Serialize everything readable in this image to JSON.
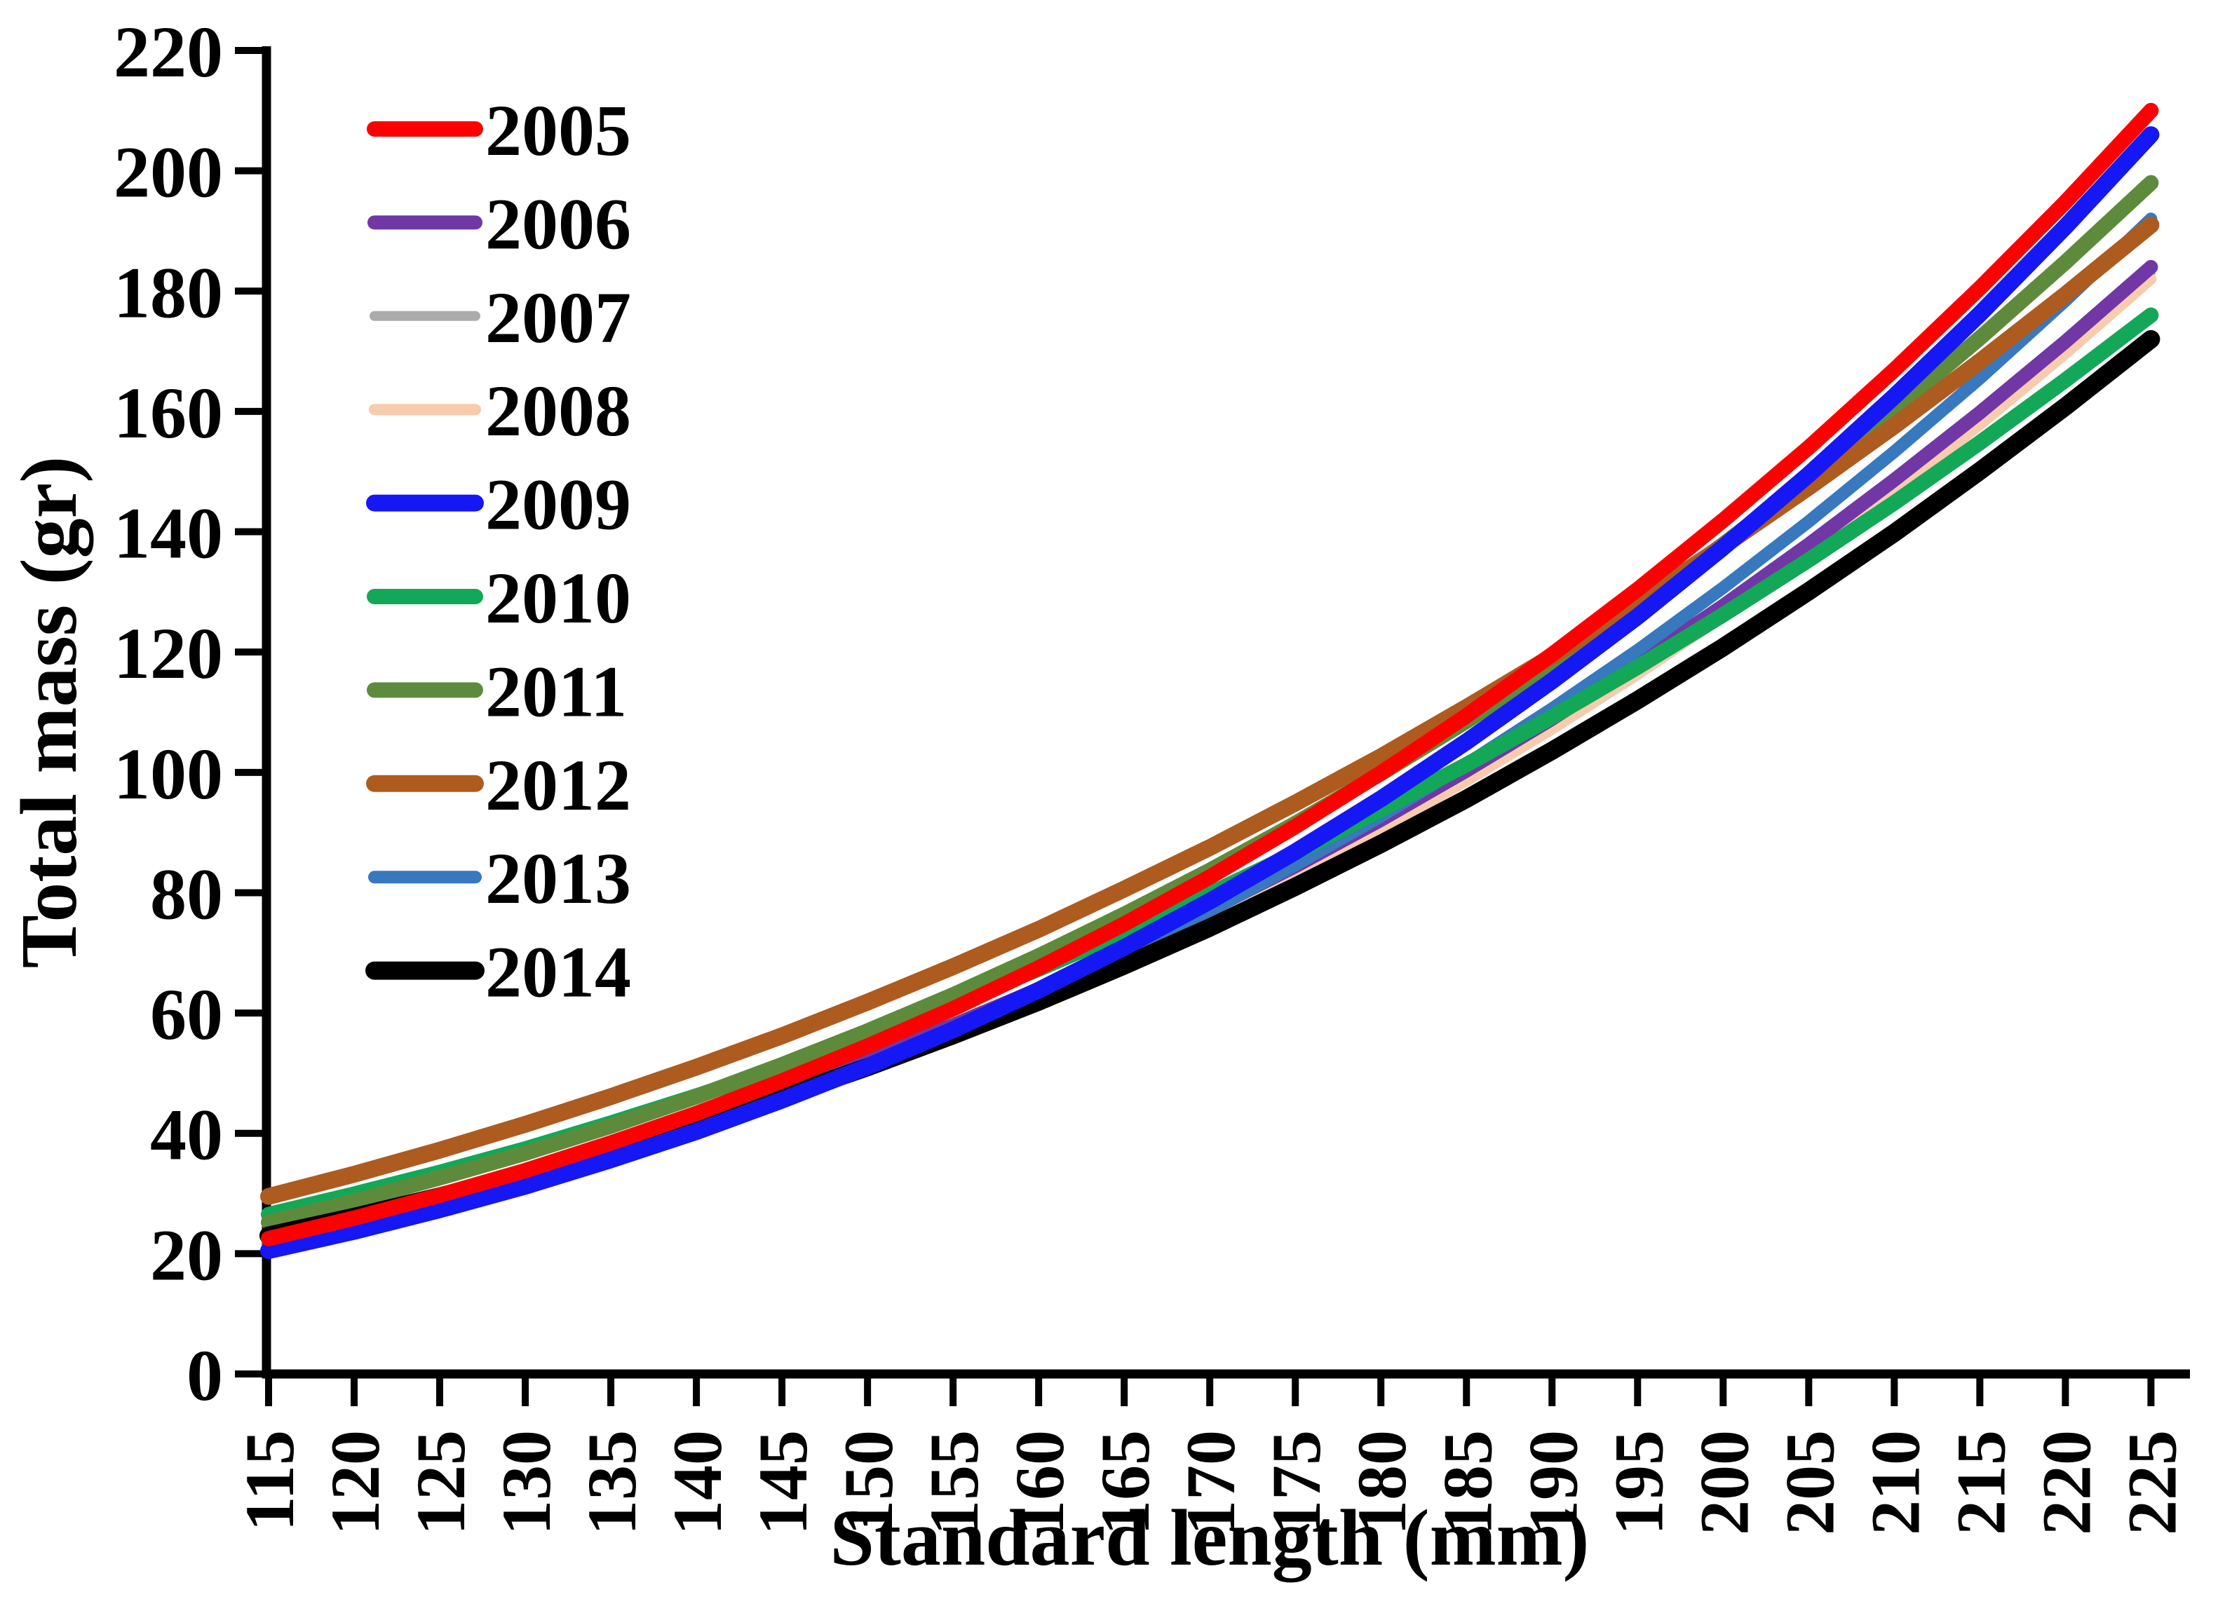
{
  "chart_data": {
    "type": "line",
    "title": "",
    "xlabel": "Standard length (mm)",
    "ylabel": "Total mass (gr)",
    "x": [
      115,
      120,
      125,
      130,
      135,
      140,
      145,
      150,
      155,
      160,
      165,
      170,
      175,
      180,
      185,
      190,
      195,
      200,
      205,
      210,
      215,
      220,
      225
    ],
    "xlim": [
      115,
      225
    ],
    "ylim": [
      0,
      220
    ],
    "y_tick_step": 20,
    "x_tick_step": 5,
    "grid": "off",
    "legend_position": "upper-left",
    "axis_color": "#000000",
    "series": [
      {
        "name": "2005",
        "color": "#fe0000",
        "width": 22,
        "values": [
          22.5,
          25.9,
          29.7,
          33.8,
          38.4,
          43.3,
          48.7,
          54.5,
          60.7,
          67.5,
          74.8,
          82.6,
          91.0,
          99.9,
          109.4,
          119.6,
          130.4,
          141.9,
          154.0,
          166.9,
          180.5,
          194.8,
          210.0
        ]
      },
      {
        "name": "2006",
        "color": "#7137a5",
        "width": 20,
        "values": [
          23.0,
          26.2,
          29.8,
          33.6,
          37.8,
          42.3,
          47.2,
          52.4,
          58.0,
          64.0,
          70.4,
          77.2,
          84.4,
          92.1,
          100.3,
          108.9,
          118.1,
          127.7,
          137.9,
          148.6,
          159.8,
          171.6,
          184.0
        ]
      },
      {
        "name": "2007",
        "color": "#ababab",
        "width": 13,
        "values": [
          22.8,
          26.0,
          29.6,
          33.3,
          37.5,
          42.0,
          46.8,
          52.0,
          57.6,
          63.5,
          69.9,
          76.6,
          83.8,
          91.4,
          99.6,
          108.2,
          117.3,
          126.9,
          137.1,
          147.8,
          158.9,
          170.7,
          183.0
        ]
      },
      {
        "name": "2008",
        "color": "#f8cbad",
        "width": 16,
        "values": [
          22.3,
          25.5,
          28.9,
          32.7,
          36.8,
          41.3,
          46.0,
          51.2,
          56.7,
          62.6,
          69.0,
          75.7,
          82.9,
          90.5,
          98.6,
          107.2,
          116.3,
          125.9,
          136.0,
          146.6,
          157.8,
          169.6,
          182.0
        ]
      },
      {
        "name": "2009",
        "color": "#1517f5",
        "width": 24,
        "values": [
          20.5,
          23.7,
          27.3,
          31.2,
          35.6,
          40.3,
          45.5,
          51.1,
          57.2,
          63.8,
          70.9,
          78.6,
          86.8,
          95.6,
          105.1,
          115.2,
          125.9,
          137.4,
          149.5,
          162.5,
          176.2,
          190.7,
          206.0
        ]
      },
      {
        "name": "2010",
        "color": "#12a857",
        "width": 22,
        "values": [
          26.5,
          29.9,
          33.5,
          37.4,
          41.7,
          46.2,
          51.0,
          56.1,
          61.5,
          67.3,
          73.4,
          79.8,
          86.6,
          93.8,
          101.3,
          109.2,
          117.5,
          126.2,
          135.3,
          144.8,
          154.8,
          165.2,
          176.0
        ]
      },
      {
        "name": "2011",
        "color": "#5e8b3b",
        "width": 22,
        "values": [
          25.2,
          28.7,
          32.6,
          36.7,
          41.2,
          46.1,
          51.4,
          57.0,
          63.0,
          69.5,
          76.4,
          83.7,
          91.5,
          99.8,
          108.5,
          117.8,
          127.6,
          137.9,
          148.7,
          160.2,
          172.2,
          184.8,
          198.0
        ]
      },
      {
        "name": "2012",
        "color": "#ae5b20",
        "width": 24,
        "values": [
          29.5,
          33.2,
          37.2,
          41.5,
          46.1,
          51.0,
          56.2,
          61.8,
          67.7,
          73.9,
          80.6,
          87.5,
          94.9,
          102.6,
          110.8,
          119.3,
          128.2,
          137.6,
          147.4,
          157.6,
          168.3,
          179.4,
          191.0
        ]
      },
      {
        "name": "2013",
        "color": "#3778be",
        "width": 18,
        "values": [
          21.5,
          24.7,
          28.2,
          32.1,
          36.3,
          40.8,
          45.8,
          51.1,
          56.9,
          63.1,
          69.8,
          76.9,
          84.6,
          92.7,
          101.4,
          110.6,
          120.3,
          130.7,
          141.7,
          153.3,
          165.5,
          178.4,
          192.0
        ]
      },
      {
        "name": "2014",
        "color": "#000000",
        "width": 26,
        "values": [
          23.0,
          26.1,
          29.5,
          33.2,
          37.2,
          41.5,
          46.1,
          51.0,
          56.3,
          61.9,
          67.9,
          74.2,
          81.0,
          88.1,
          95.6,
          103.6,
          112.0,
          120.8,
          130.1,
          139.8,
          150.1,
          160.8,
          172.0
        ]
      }
    ],
    "draw_order": [
      "2007",
      "2008",
      "2006",
      "2013",
      "2010",
      "2011",
      "2012",
      "2014",
      "2009",
      "2005"
    ],
    "legend_order": [
      "2005",
      "2006",
      "2007",
      "2008",
      "2009",
      "2010",
      "2011",
      "2012",
      "2013",
      "2014"
    ]
  }
}
